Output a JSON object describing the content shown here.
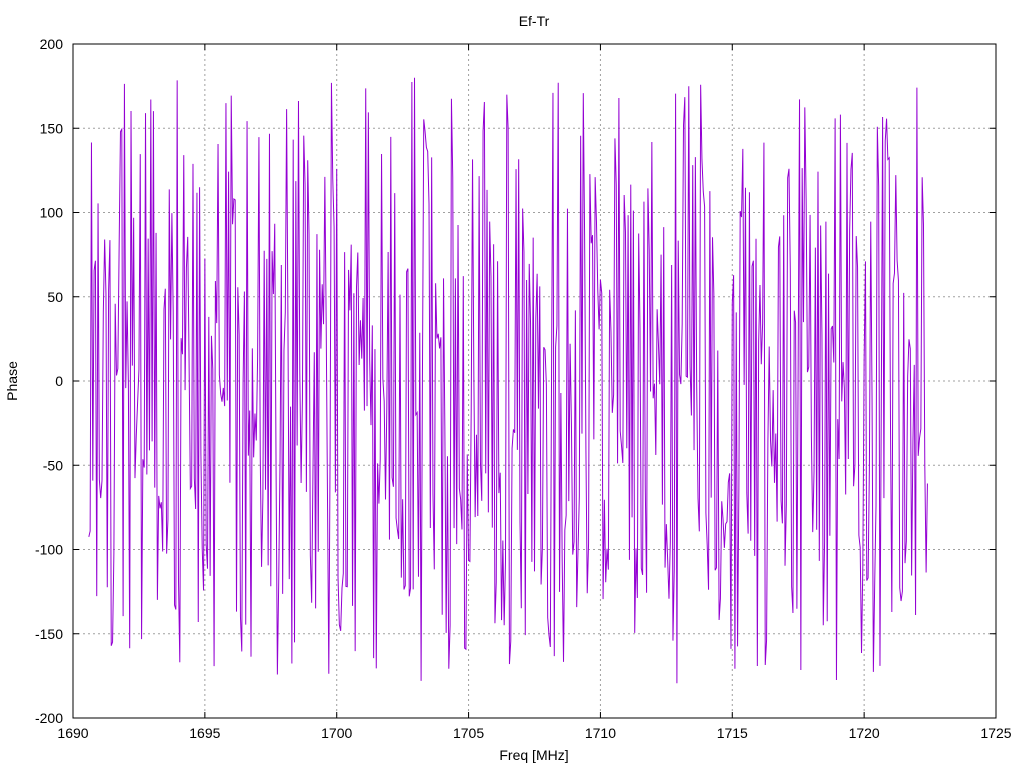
{
  "chart_data": {
    "type": "line",
    "title": "Ef-Tr",
    "xlabel": "Freq [MHz]",
    "ylabel": "Phase",
    "xlim": [
      1690,
      1725
    ],
    "ylim": [
      -200,
      200
    ],
    "x_ticks": [
      "1690",
      "1695",
      "1700",
      "1705",
      "1710",
      "1715",
      "1720",
      "1725"
    ],
    "y_ticks": [
      "-200",
      "-150",
      "-100",
      "-50",
      "0",
      "50",
      "100",
      "150",
      "200"
    ],
    "grid": true,
    "legend": "none",
    "series": [
      {
        "color": "#9400d3",
        "x_start": 1690.6,
        "x_end": 1722.4,
        "x_step": 0.05,
        "envelope_x": [
          1690.6,
          1691.5,
          1692.6,
          1693.5,
          1694.1,
          1694.4,
          1695.5,
          1696.5,
          1696.6,
          1698.0,
          1699.5,
          1699.7,
          1700.0,
          1701.5,
          1703.2,
          1703.3,
          1704.0,
          1704.9,
          1705.1,
          1706.5,
          1707.0,
          1708.5,
          1709.2,
          1710.3,
          1711.5,
          1712.5,
          1713.5,
          1714.5,
          1715.5,
          1716.0,
          1717.5,
          1717.6,
          1718.5,
          1719.3,
          1720.0,
          1720.6,
          1721.5,
          1722.4
        ],
        "envelope_y": [
          120,
          60,
          -40,
          -120,
          -150,
          130,
          20,
          -150,
          170,
          60,
          -150,
          170,
          90,
          -20,
          -170,
          160,
          30,
          -130,
          170,
          40,
          -100,
          -170,
          150,
          30,
          -150,
          100,
          -30,
          -140,
          150,
          30,
          -150,
          160,
          60,
          -30,
          -150,
          160,
          50,
          -80
        ],
        "spread": 45,
        "wrap_probability": 0.45
      }
    ]
  }
}
